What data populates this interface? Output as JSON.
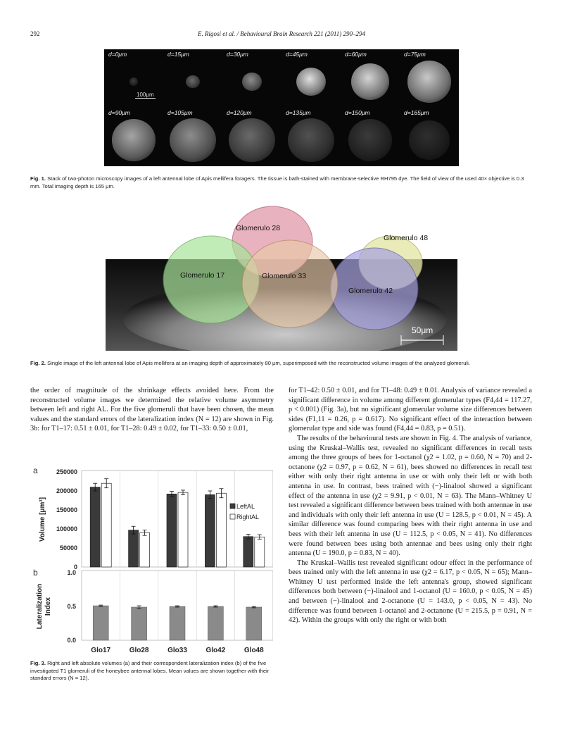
{
  "header": {
    "page": "292",
    "journal": "E. Rigosi et al. / Behavioural Brain Research 221 (2011) 290–294"
  },
  "fig1": {
    "depths": [
      "d=0μm",
      "d=15μm",
      "d=30μm",
      "d=45μm",
      "d=60μm",
      "d=75μm",
      "d=90μm",
      "d=105μm",
      "d=120μm",
      "d=135μm",
      "d=150μm",
      "d=165μm"
    ],
    "scale": "100μm",
    "caption_label": "Fig. 1.",
    "caption": "Stack of two-photon microscopy images of a left antennal lobe of Apis mellifera foragers. The tissue is bath-stained with membrane-selective RH795 dye. The field of view of the used 40× objective is 0.3 mm. Total imaging depth is 165 μm."
  },
  "fig2": {
    "labels": [
      "Glomerulo 28",
      "Glomerulo 48",
      "Glomerulo 17",
      "Glomerulo 33",
      "Glomerulo 42"
    ],
    "scale": "50μm",
    "caption_label": "Fig. 2.",
    "caption": "Single image of the left antennal lobe of Apis mellifera at an imaging depth of approximately 80 μm, superimposed with the reconstructed volume images of the analyzed glomeruli."
  },
  "left_paragraphs": [
    "the order of magnitude of the shrinkage effects avoided here. From the reconstructed volume images we determined the relative volume asymmetry between left and right AL. For the five glomeruli that have been chosen, the mean values and the standard errors of the lateralization index (N = 12) are shown in Fig. 3b: for T1–17: 0.51 ± 0.01, for T1–28: 0.49 ± 0.02, for T1–33: 0.50 ± 0.01,"
  ],
  "right_paragraphs": [
    "for T1–42: 0.50 ± 0.01, and for T1–48: 0.49 ± 0.01. Analysis of variance revealed a significant difference in volume among different glomerular types (F4,44 = 117.27, p < 0.001) (Fig. 3a), but no significant glomerular volume size differences between sides (F1,11 = 0.26, p = 0.617). No significant effect of the interaction between glomerular type and side was found (F4,44 = 0.83, p = 0.51).",
    "The results of the behavioural tests are shown in Fig. 4. The analysis of variance, using the Kruskal–Wallis test, revealed no significant differences in recall tests among the three groups of bees for 1-octanol (χ2 = 1.02, p = 0.60, N = 70) and 2-octanone (χ2 = 0.97, p = 0.62, N = 61), bees showed no differences in recall test either with only their right antenna in use or with only their left or with both antenna in use. In contrast, bees trained with (−)-linalool showed a significant effect of the antenna in use (χ2 = 9.91, p < 0.01, N = 63). The Mann–Whitney U test revealed a significant difference between bees trained with both antennae in use and individuals with only their left antenna in use (U = 128.5, p < 0.01, N = 45). A similar difference was found comparing bees with their right antenna in use and bees with their left antenna in use (U = 112.5, p < 0.05, N = 41). No differences were found between bees using both antennae and bees using only their right antenna (U = 190.0, p = 0.83, N = 40).",
    "The Kruskal–Wallis test revealed significant odour effect in the performance of bees trained only with the left antenna in use (χ2 = 6.17, p < 0.05, N = 65); Mann–Whitney U test performed inside the left antenna's group, showed significant differences both between (−)-linalool and 1-octanol (U = 160.0, p < 0.05, N = 45) and between (−)-linalool and 2-octanone (U = 143.0, p < 0.05, N = 43). No difference was found between 1-octanol and 2-octanone (U = 215.5, p = 0.91, N = 42). Within the groups with only the right or with both"
  ],
  "fig3": {
    "caption_label": "Fig. 3.",
    "caption": "Right and left absolute volumes (a) and their correspondent lateralization index (b) of the five investigated T1 glomeruli of the honeybee antennal lobes. Mean values are shown together with their standard errors (N = 12)."
  },
  "chart_data": [
    {
      "type": "bar",
      "panel": "a",
      "categories": [
        "Glo17",
        "Glo28",
        "Glo33",
        "Glo42",
        "Glo48"
      ],
      "series": [
        {
          "name": "LeftAL",
          "values": [
            210000,
            97000,
            192000,
            190000,
            80000
          ],
          "errors": [
            10000,
            10000,
            7000,
            10000,
            6000
          ],
          "color": "#3a3a3a"
        },
        {
          "name": "RightAL",
          "values": [
            220000,
            90000,
            196000,
            194000,
            79000
          ],
          "errors": [
            12000,
            7000,
            6000,
            12000,
            6000
          ],
          "color": "#ffffff"
        }
      ],
      "ylabel": "Volume [μm³]",
      "ylim": [
        0,
        250000
      ],
      "yticks": [
        "0",
        "50000",
        "100000",
        "150000",
        "200000",
        "250000"
      ],
      "legend": "right"
    },
    {
      "type": "bar",
      "panel": "b",
      "categories": [
        "Glo17",
        "Glo28",
        "Glo33",
        "Glo42",
        "Glo48"
      ],
      "values": [
        0.51,
        0.49,
        0.5,
        0.5,
        0.49
      ],
      "errors": [
        0.01,
        0.02,
        0.01,
        0.01,
        0.01
      ],
      "ylabel": "Lateralization Index",
      "ylim": [
        0,
        1
      ],
      "yticks": [
        "0.0",
        "0.5",
        "1.0"
      ],
      "color": "#8a8a8a"
    }
  ]
}
